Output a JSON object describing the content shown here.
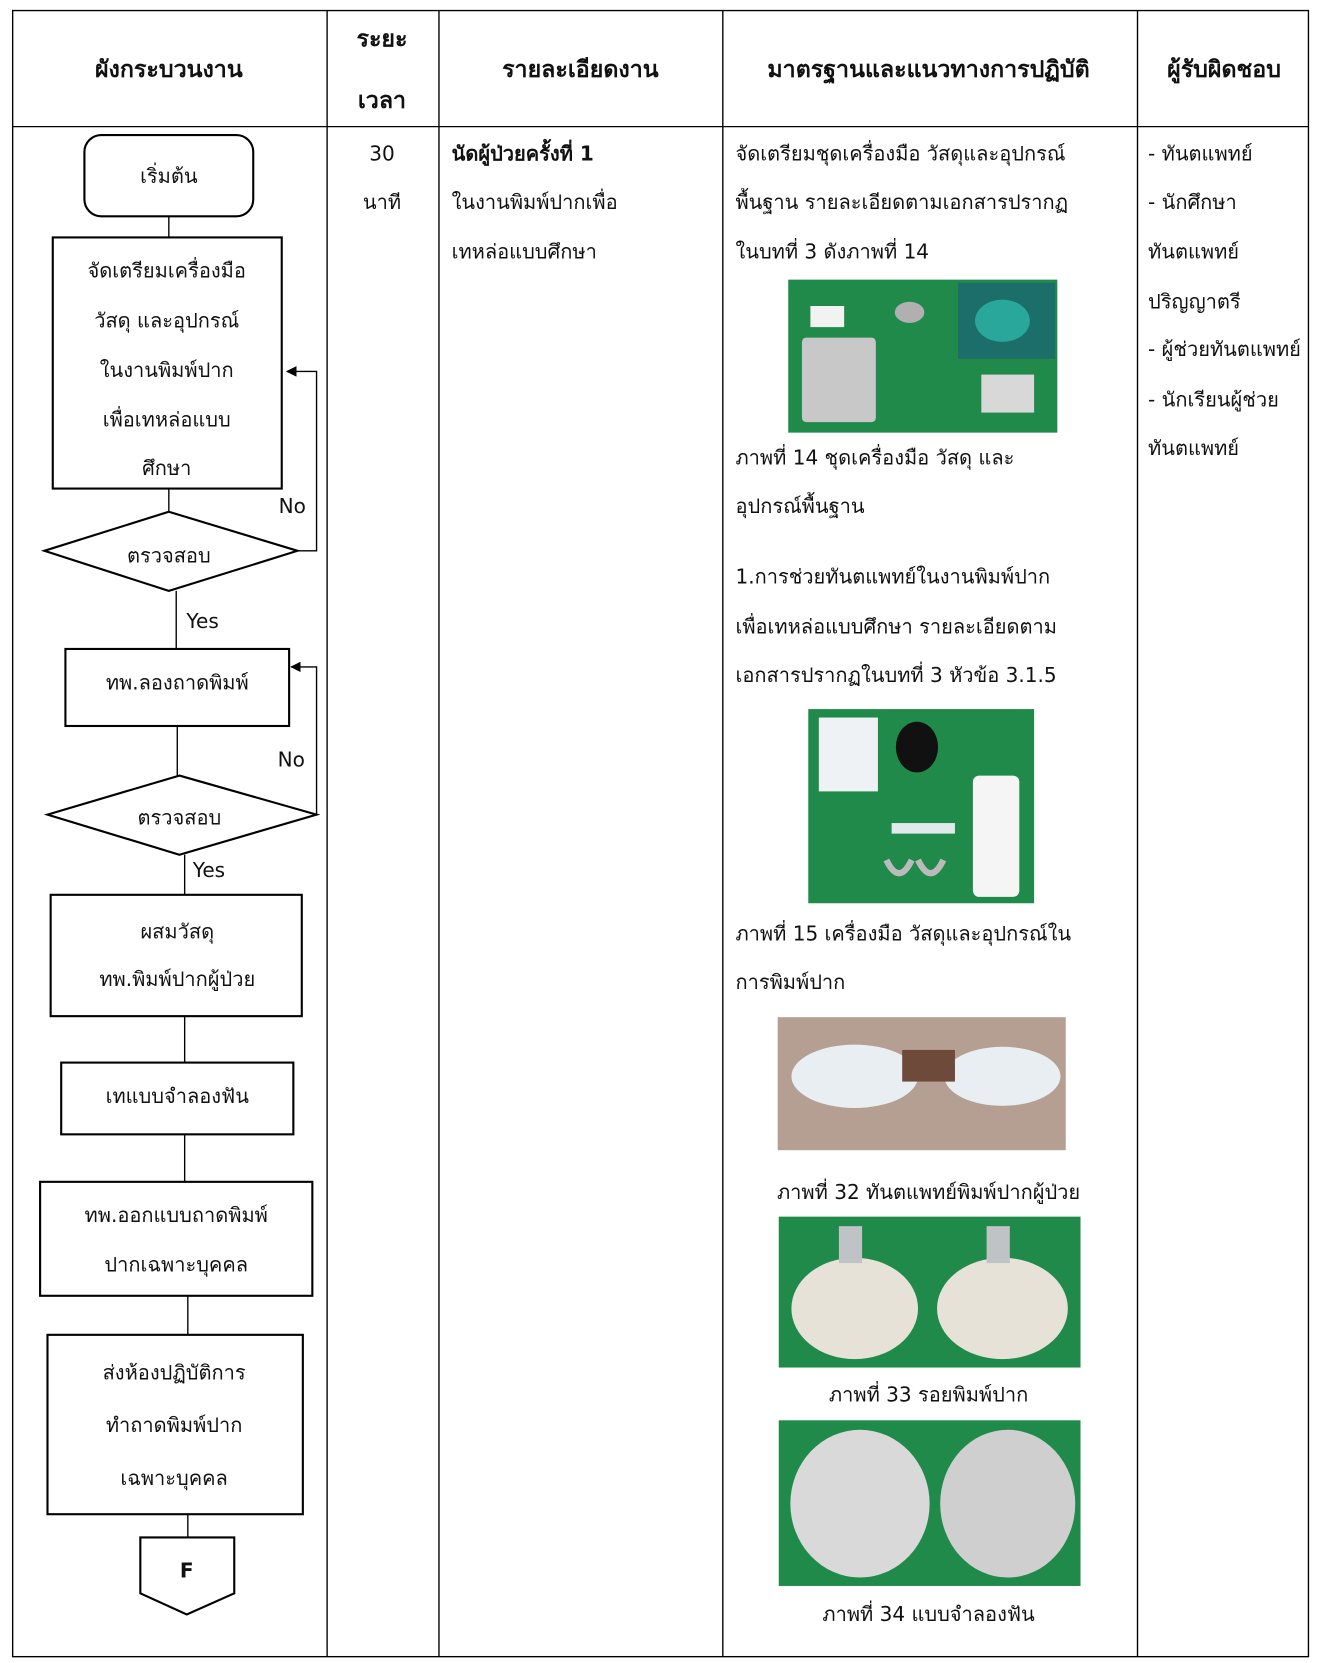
{
  "table": {
    "headers": [
      [
        "ผังกระบวนงาน"
      ],
      [
        "ระยะ",
        "เวลา"
      ],
      [
        "รายละเอียดงาน"
      ],
      [
        "มาตรฐานและแนวทางการปฏิบัติ"
      ],
      [
        "ผู้รับผิดชอบ"
      ]
    ],
    "time": [
      "30",
      "นาที"
    ],
    "details": {
      "title": "นัดผู้ป่วยครั้งที่ 1",
      "lines": [
        "ในงานพิมพ์ปากเพื่อ",
        "เทหล่อแบบศึกษา"
      ]
    },
    "standards": {
      "intro": [
        "จัดเตรียมชุดเครื่องมือ วัสดุและอุปกรณ์",
        "พื้นฐาน รายละเอียดตามเอกสารปรากฏ",
        "ในบทที่ 3 ดังภาพที่ 14"
      ],
      "caption_14": [
        "ภาพที่ 14  ชุดเครื่องมือ วัสดุ และ",
        "อุปกรณ์พื้นฐาน"
      ],
      "step_1": [
        "1.การช่วยทันตแพทย์ในงานพิมพ์ปาก",
        "เพื่อเทหล่อแบบศึกษา รายละเอียดตาม",
        "เอกสารปรากฏในบทที่ 3 หัวข้อ 3.1.5"
      ],
      "caption_15": [
        "ภาพที่ 15 เครื่องมือ วัสดุและอุปกรณ์ใน",
        "การพิมพ์ปาก"
      ],
      "caption_32": "ภาพที่ 32 ทันตแพทย์พิมพ์ปากผู้ป่วย",
      "caption_33": "ภาพที่ 33  รอยพิมพ์ปาก",
      "caption_34": "ภาพที่ 34 แบบจำลองฟัน"
    },
    "responsible": [
      "- ทันตแพทย์",
      "- นักศึกษา",
      " ทันตแพทย์",
      " ปริญญาตรี",
      "- ผู้ช่วยทันตแพทย์",
      "- นักเรียนผู้ช่วย",
      "ทันตแพทย์"
    ]
  },
  "flowchart": {
    "nodes": [
      [
        "เริ่มต้น"
      ],
      [
        "จัดเตรียมเครื่องมือ",
        "วัสดุ และอุปกรณ์",
        "ในงานพิมพ์ปาก",
        "เพื่อเทหล่อแบบ",
        "ศึกษา"
      ],
      [
        "ตรวจสอบ"
      ],
      [
        "ทพ.ลองถาดพิมพ์"
      ],
      [
        "ตรวจสอบ"
      ],
      [
        "ผสมวัสดุ",
        "ทพ.พิมพ์ปากผู้ป่วย"
      ],
      [
        "เทแบบจำลองฟัน"
      ],
      [
        "ทพ.ออกแบบถาดพิมพ์",
        "ปากเฉพาะบุคคล"
      ],
      [
        "ส่งห้องปฏิบัติการ",
        "ทำถาดพิมพ์ปาก",
        "เฉพาะบุคคล"
      ],
      [
        "F"
      ]
    ],
    "edge_labels": [
      "No",
      "Yes",
      "No",
      "Yes"
    ]
  }
}
